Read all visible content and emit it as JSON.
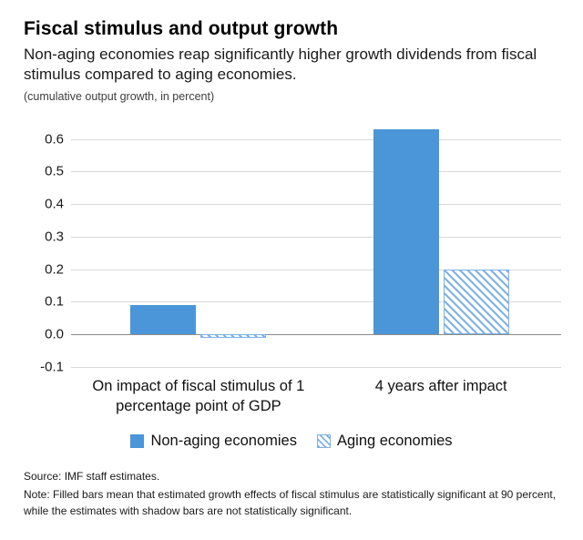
{
  "header": {
    "title": "Fiscal stimulus and output growth",
    "subtitle": "Non-aging economies reap significantly higher growth dividends from fiscal stimulus compared to aging economies.",
    "caption": "(cumulative output growth, in percent)"
  },
  "chart_data": {
    "type": "bar",
    "categories": [
      "On impact of fiscal stimulus of 1 percentage point of GDP",
      "4 years after impact"
    ],
    "series": [
      {
        "name": "Non-aging economies",
        "style": "solid",
        "values": [
          0.09,
          0.63
        ]
      },
      {
        "name": "Aging economies",
        "style": "hatched",
        "values": [
          -0.01,
          0.2
        ]
      }
    ],
    "ylim": [
      -0.1,
      0.65
    ],
    "yticks": [
      0.6,
      0.5,
      0.4,
      0.3,
      0.2,
      0.1,
      0.0,
      -0.1
    ],
    "grid": true,
    "legend_position": "bottom",
    "colors": {
      "bar_blue": "#4a96d8",
      "hatch_blue": "#7fb2e5",
      "grid": "#d9d9d9",
      "zero_line": "#8c8c8c"
    }
  },
  "footer": {
    "source": "Source: IMF staff estimates.",
    "note": "Note: Filled bars mean that estimated growth effects of fiscal stimulus are statistically significant at 90 percent, while the estimates with shadow bars are not statistically significant."
  }
}
